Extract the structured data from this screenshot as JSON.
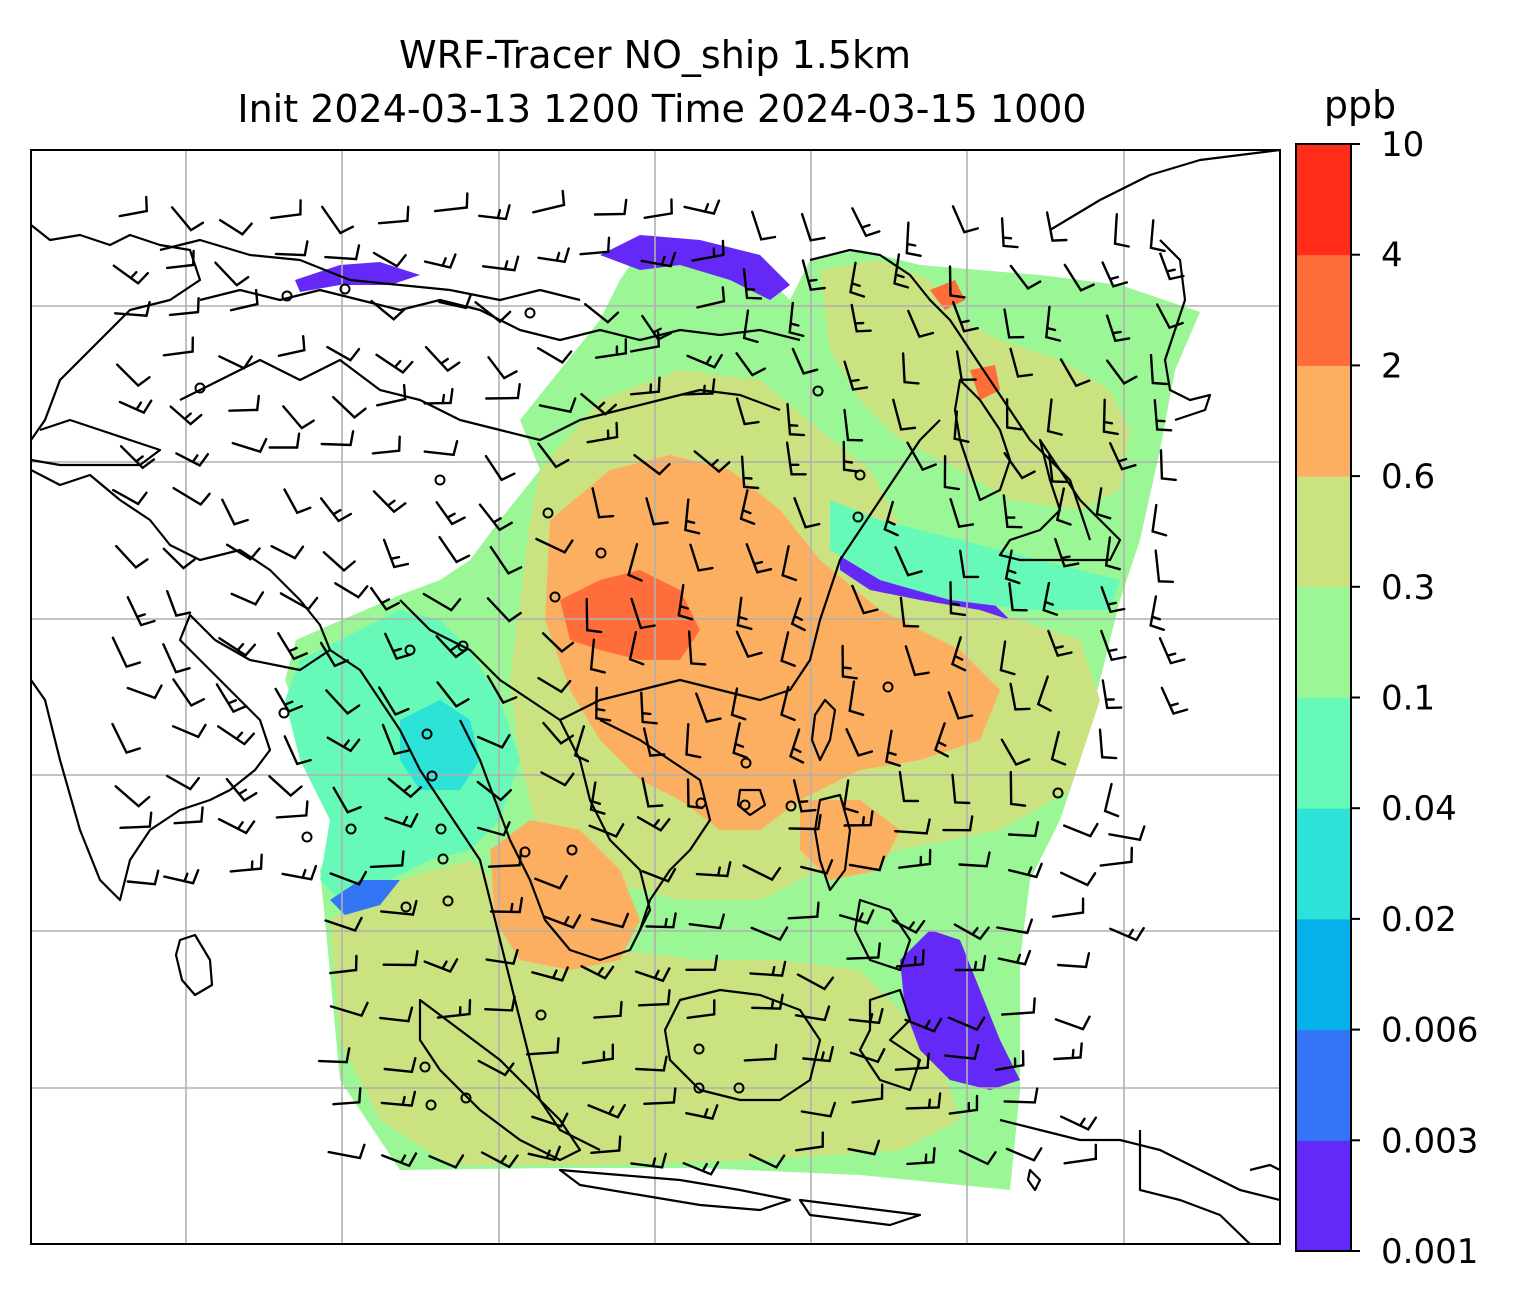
{
  "title": {
    "line1": "WRF-Tracer NO_ship 1.5km",
    "line2": "Init 2024-03-13 1200 Time 2024-03-15 1000"
  },
  "colorbar": {
    "unit": "ppb",
    "levels": [
      "0.001",
      "0.003",
      "0.006",
      "0.02",
      "0.04",
      "0.1",
      "0.3",
      "0.6",
      "2",
      "4",
      "10"
    ],
    "colors": [
      "#6529f7",
      "#3475f6",
      "#05b1ea",
      "#2de2d6",
      "#66f9b8",
      "#9bf795",
      "#cbe281",
      "#fdaf61",
      "#ff6e3a",
      "#ff2d19"
    ]
  },
  "map": {
    "gridlines": "on",
    "field_colors": {
      "low": "#6529f7",
      "blue": "#3475f6",
      "cyan": "#2de2d6",
      "aqua": "#66f9b8",
      "green": "#9bf795",
      "olive": "#cbe281",
      "orange": "#fdaf61",
      "red": "#ff6e3a"
    },
    "coastline_color": "#000000"
  }
}
